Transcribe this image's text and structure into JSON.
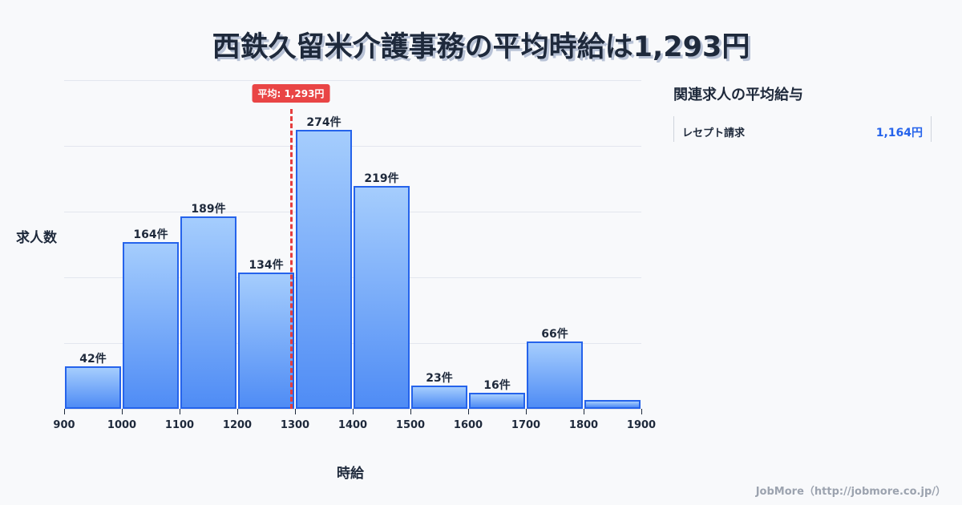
{
  "title": "西鉄久留米介護事務の平均時給は1,293円",
  "average_badge": "平均: 1,293円",
  "side_panel": {
    "title": "関連求人の平均給与",
    "items": [
      {
        "name": "レセプト請求",
        "value": "1,164円"
      }
    ]
  },
  "credit": "JobMore（http://jobmore.co.jp/）",
  "colors": {
    "bar_fill_top": "#a5cdfd",
    "bar_fill_bottom": "#4f8cf5",
    "bar_border": "#2563eb",
    "average_line": "#e53e3e",
    "side_value": "#2563eb"
  },
  "chart_data": {
    "type": "bar",
    "title": "西鉄久留米介護事務の平均時給は1,293円",
    "xlabel": "時給",
    "ylabel": "求人数",
    "bins": [
      [
        900,
        1000
      ],
      [
        1000,
        1100
      ],
      [
        1100,
        1200
      ],
      [
        1200,
        1300
      ],
      [
        1300,
        1400
      ],
      [
        1400,
        1500
      ],
      [
        1500,
        1600
      ],
      [
        1600,
        1700
      ],
      [
        1700,
        1800
      ],
      [
        1800,
        1900
      ]
    ],
    "categories": [
      "900-1000",
      "1000-1100",
      "1100-1200",
      "1200-1300",
      "1300-1400",
      "1400-1500",
      "1500-1600",
      "1600-1700",
      "1700-1800",
      "1800-1900"
    ],
    "values": [
      42,
      164,
      189,
      134,
      274,
      219,
      23,
      16,
      66,
      9
    ],
    "labels": [
      "42件",
      "164件",
      "189件",
      "134件",
      "274件",
      "219件",
      "23件",
      "16件",
      "66件",
      ""
    ],
    "x_ticks": [
      "900",
      "1000",
      "1100",
      "1200",
      "1300",
      "1400",
      "1500",
      "1600",
      "1700",
      "1800",
      "1900"
    ],
    "xlim": [
      900,
      1900
    ],
    "ylim": [
      0,
      323
    ],
    "grid": true,
    "average": {
      "value": 1293,
      "label": "平均: 1,293円"
    }
  }
}
